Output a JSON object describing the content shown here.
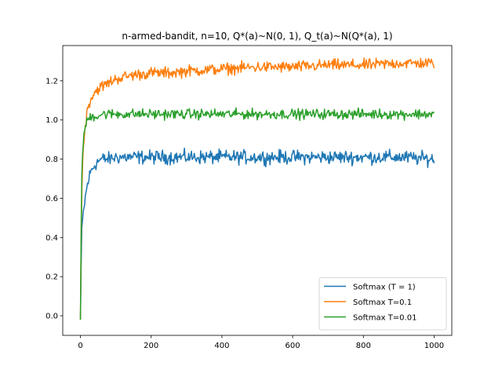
{
  "chart_data": {
    "type": "line",
    "title": "n-armed-bandit, n=10, Q*(a)~N(0, 1), Q_t(a)~N(Q*(a), 1)",
    "xlabel": "",
    "ylabel": "",
    "xlim": [
      -50,
      1050
    ],
    "ylim": [
      -0.1,
      1.38
    ],
    "xticks": [
      0,
      200,
      400,
      600,
      800,
      1000
    ],
    "xtick_labels": [
      "0",
      "200",
      "400",
      "600",
      "800",
      "1000"
    ],
    "yticks": [
      0.0,
      0.2,
      0.4,
      0.6,
      0.8,
      1.0,
      1.2
    ],
    "ytick_labels": [
      "0.0",
      "0.2",
      "0.4",
      "0.6",
      "0.8",
      "1.0",
      "1.2"
    ],
    "grid": false,
    "legend_position": "lower-right",
    "x": [
      0,
      2,
      4,
      6,
      8,
      10,
      15,
      20,
      25,
      30,
      40,
      50,
      60,
      80,
      100,
      150,
      200,
      250,
      300,
      400,
      500,
      600,
      700,
      800,
      900,
      1000
    ],
    "series": [
      {
        "name": "Softmax (T = 1)",
        "color": "#1f77b4",
        "noise": 0.03,
        "values": [
          -0.02,
          0.25,
          0.42,
          0.48,
          0.52,
          0.55,
          0.62,
          0.67,
          0.71,
          0.74,
          0.77,
          0.79,
          0.8,
          0.8,
          0.81,
          0.81,
          0.81,
          0.81,
          0.81,
          0.81,
          0.81,
          0.81,
          0.81,
          0.81,
          0.81,
          0.8
        ]
      },
      {
        "name": "Softmax T=0.1",
        "color": "#ff7f0e",
        "noise": 0.025,
        "values": [
          -0.02,
          0.4,
          0.62,
          0.76,
          0.85,
          0.91,
          0.99,
          1.05,
          1.09,
          1.11,
          1.14,
          1.16,
          1.17,
          1.19,
          1.21,
          1.23,
          1.24,
          1.24,
          1.25,
          1.26,
          1.27,
          1.27,
          1.28,
          1.28,
          1.29,
          1.29
        ]
      },
      {
        "name": "Softmax T=0.01",
        "color": "#2ca02c",
        "noise": 0.022,
        "values": [
          -0.02,
          0.45,
          0.7,
          0.82,
          0.89,
          0.93,
          0.97,
          1.0,
          1.01,
          1.02,
          1.02,
          1.02,
          1.03,
          1.03,
          1.03,
          1.03,
          1.03,
          1.03,
          1.03,
          1.03,
          1.03,
          1.03,
          1.03,
          1.03,
          1.03,
          1.03
        ]
      }
    ]
  }
}
